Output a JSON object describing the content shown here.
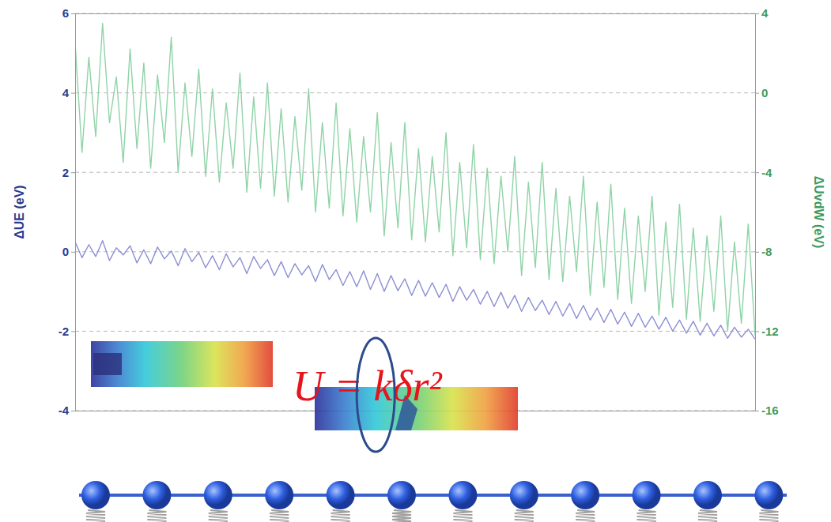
{
  "chart_data": {
    "type": "line",
    "x": [
      0,
      1,
      2,
      3,
      4,
      5,
      6,
      7,
      8,
      9,
      10,
      11,
      12,
      13,
      14,
      15,
      16,
      17,
      18,
      19,
      20,
      21,
      22,
      23,
      24,
      25,
      26,
      27,
      28,
      29,
      30,
      31,
      32,
      33,
      34,
      35,
      36,
      37,
      38,
      39,
      40,
      41,
      42,
      43,
      44,
      45,
      46,
      47,
      48,
      49,
      50,
      51,
      52,
      53,
      54,
      55,
      56,
      57,
      58,
      59,
      60,
      61,
      62,
      63,
      64,
      65,
      66,
      67,
      68,
      69,
      70,
      71,
      72,
      73,
      74,
      75,
      76,
      77,
      78,
      79,
      80,
      81,
      82,
      83,
      84,
      85,
      86,
      87,
      88,
      89,
      90,
      91,
      92,
      93,
      94,
      95,
      96,
      97,
      98,
      99
    ],
    "xlim": [
      0,
      99
    ],
    "y_label": "ΔUE (eV)",
    "y2_label": "ΔUvdW (eV)",
    "ylim": [
      -4,
      6
    ],
    "yticks": [
      -4,
      -2,
      0,
      2,
      4,
      6
    ],
    "y2lim": [
      -16,
      4
    ],
    "y2ticks": [
      -16,
      -12,
      -8,
      -4,
      0,
      4
    ],
    "grid": true,
    "annotations": [
      "U = kδr²"
    ],
    "series": [
      {
        "color": "#8c8fd2",
        "values": [
          0.25,
          -0.15,
          0.18,
          -0.12,
          0.28,
          -0.22,
          0.1,
          -0.08,
          0.15,
          -0.28,
          0.05,
          -0.3,
          0.12,
          -0.18,
          0.02,
          -0.35,
          0.08,
          -0.25,
          -0.02,
          -0.4,
          -0.1,
          -0.45,
          -0.05,
          -0.38,
          -0.15,
          -0.55,
          -0.12,
          -0.42,
          -0.2,
          -0.6,
          -0.25,
          -0.65,
          -0.3,
          -0.58,
          -0.35,
          -0.75,
          -0.32,
          -0.7,
          -0.45,
          -0.85,
          -0.5,
          -0.88,
          -0.48,
          -0.95,
          -0.55,
          -1.0,
          -0.6,
          -0.98,
          -0.68,
          -1.1,
          -0.72,
          -1.12,
          -0.78,
          -1.15,
          -0.82,
          -1.25,
          -0.88,
          -1.22,
          -0.95,
          -1.32,
          -1.0,
          -1.38,
          -1.02,
          -1.42,
          -1.1,
          -1.5,
          -1.15,
          -1.48,
          -1.22,
          -1.58,
          -1.25,
          -1.62,
          -1.3,
          -1.68,
          -1.35,
          -1.72,
          -1.42,
          -1.78,
          -1.45,
          -1.82,
          -1.52,
          -1.88,
          -1.55,
          -1.9,
          -1.62,
          -1.95,
          -1.65,
          -2.0,
          -1.72,
          -2.05,
          -1.75,
          -2.1,
          -1.8,
          -2.12,
          -1.85,
          -2.18,
          -1.9,
          -2.15,
          -1.95,
          -2.2
        ]
      },
      {
        "color": "#8fd3a7",
        "axis": "y2",
        "values": [
          2.5,
          -3.0,
          1.8,
          -2.2,
          3.5,
          -1.5,
          0.8,
          -3.5,
          2.2,
          -2.8,
          1.5,
          -3.8,
          0.9,
          -2.5,
          2.8,
          -4.0,
          0.5,
          -3.2,
          1.2,
          -4.2,
          0.2,
          -4.5,
          -0.5,
          -3.8,
          1.0,
          -5.0,
          -0.2,
          -4.8,
          0.5,
          -5.2,
          -0.8,
          -5.5,
          -1.2,
          -4.9,
          0.2,
          -6.0,
          -1.5,
          -5.8,
          -0.5,
          -6.2,
          -1.8,
          -6.5,
          -2.2,
          -6.0,
          -1.0,
          -7.2,
          -2.5,
          -6.8,
          -1.5,
          -7.4,
          -2.8,
          -7.5,
          -3.2,
          -7.0,
          -2.0,
          -8.2,
          -3.5,
          -7.8,
          -2.6,
          -8.4,
          -3.8,
          -8.6,
          -4.2,
          -8.0,
          -3.2,
          -9.2,
          -4.5,
          -8.8,
          -3.5,
          -9.4,
          -4.8,
          -9.5,
          -5.2,
          -9.0,
          -4.2,
          -10.2,
          -5.5,
          -9.8,
          -4.6,
          -10.4,
          -5.8,
          -10.6,
          -6.2,
          -10.0,
          -5.2,
          -11.2,
          -6.5,
          -10.8,
          -5.6,
          -11.4,
          -6.8,
          -11.5,
          -7.2,
          -11.0,
          -6.2,
          -12.0,
          -7.5,
          -11.6,
          -6.6,
          -12.2
        ]
      }
    ]
  }
}
